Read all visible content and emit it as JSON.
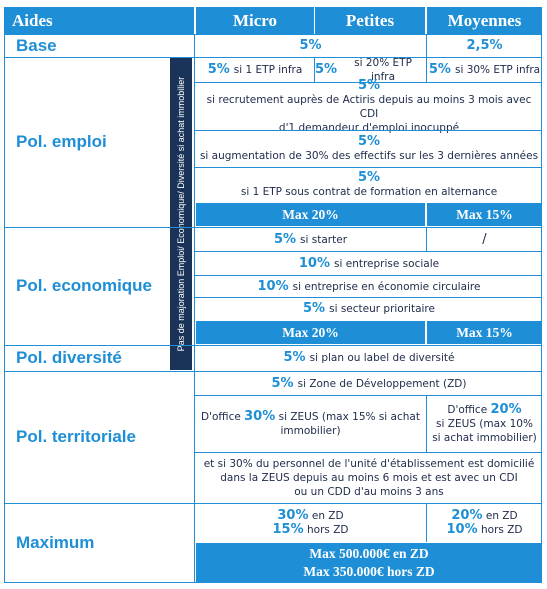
{
  "header": {
    "aides": "Aides",
    "micro": "Micro",
    "petites": "Petites",
    "moyennes": "Moyennes"
  },
  "rows": {
    "base": "Base",
    "emploi": "Pol. emploi",
    "economique": "Pol. economique",
    "diversite": "Pol. diversité",
    "territoriale": "Pol. territoriale",
    "maximum": "Maximum"
  },
  "side_note": "Pas de majoration Emploi/ Economique/ Diversité si achat immobilier",
  "base": {
    "micro_petites": "5%",
    "moyennes": "2,5%"
  },
  "emploi": {
    "micro_pct": "5%",
    "micro_text": "si 1 ETP infra",
    "petites_pct": "5%",
    "petites_text": "si 20% ETP infra",
    "moyennes_pct": "5%",
    "moyennes_text": "si 30% ETP infra",
    "r2_pct": "5%",
    "r2_text1": "si recrutement auprès de Actiris depuis au moins 3 mois avec CDI",
    "r2_text2": "d'1 demandeur d'emploi inocuppé",
    "r3_pct": "5%",
    "r3_text": "si augmentation de 30% des effectifs sur les 3 dernières années",
    "r4_pct": "5%",
    "r4_text": "si 1 ETP sous contrat de formation en alternance",
    "max_left": "Max 20%",
    "max_right": "Max 15%"
  },
  "economique": {
    "r1_pct": "5%",
    "r1_text": "si starter",
    "r1_right": "/",
    "r2_pct": "10%",
    "r2_text": "si entreprise sociale",
    "r3_pct": "10%",
    "r3_text": "si entreprise en économie circulaire",
    "r4_pct": "5%",
    "r4_text": "si secteur prioritaire",
    "max_left": "Max 20%",
    "max_right": "Max 15%"
  },
  "diversite": {
    "pct": "5%",
    "text": "si plan ou label de diversité"
  },
  "territoriale": {
    "r1_pct": "5%",
    "r1_text": "si Zone de Développement (ZD)",
    "left_prefix": "D'office",
    "left_pct": "30%",
    "left_text1": "si ZEUS (max 15% si achat",
    "left_text2": "immobilier)",
    "right_prefix": "D'office",
    "right_pct": "20%",
    "right_text1": "si ZEUS (max 10%",
    "right_text2": "si achat immobilier)",
    "r3_text1": "et si 30% du personnel de l'unité d'établissement est domicilié",
    "r3_text2": "dans la ZEUS depuis au moins 6 mois et est avec un CDI",
    "r3_text3": "ou un CDD d'au moins 3 ans"
  },
  "maximum": {
    "left_pct1": "30%",
    "left_text1": "en ZD",
    "left_pct2": "15%",
    "left_text2": "hors ZD",
    "right_pct1": "20%",
    "right_text1": "en ZD",
    "right_pct2": "10%",
    "right_text2": "hors ZD",
    "footer1": "Max 500.000€ en ZD",
    "footer2": "Max 350.000€ hors ZD"
  },
  "colors": {
    "accent": "#1e8fd6",
    "dark": "#1a3358",
    "text": "#1d2a4a"
  }
}
